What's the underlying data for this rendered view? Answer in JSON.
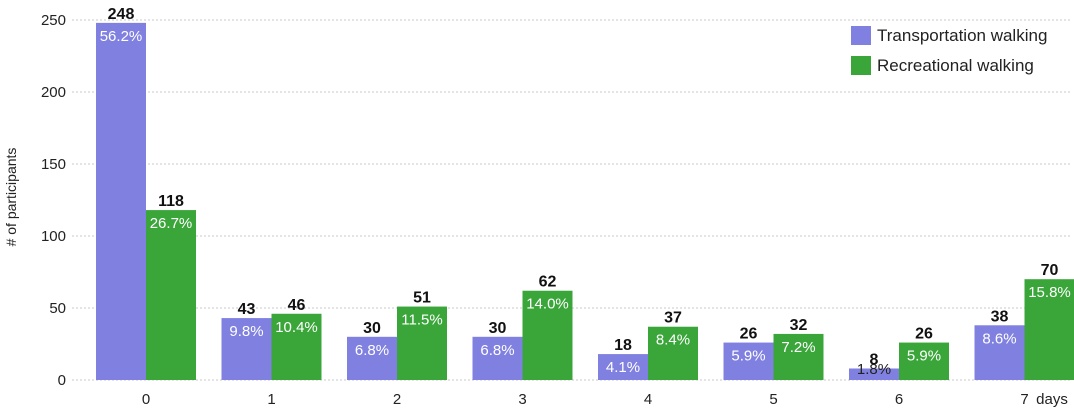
{
  "chart_data": {
    "type": "bar",
    "ylabel": "# of participants",
    "xlabel_suffix": "days",
    "ylim": [
      0,
      250
    ],
    "yticks": [
      0,
      50,
      100,
      150,
      200,
      250
    ],
    "grid": "horizontal dotted",
    "legend_position": "top-right",
    "categories": [
      "0",
      "1",
      "2",
      "3",
      "4",
      "5",
      "6",
      "7"
    ],
    "series": [
      {
        "name": "Transportation walking",
        "color": "#8080e0",
        "values": [
          248,
          43,
          30,
          30,
          18,
          26,
          8,
          38
        ],
        "percent_labels": [
          "56.2%",
          "9.8%",
          "6.8%",
          "6.8%",
          "4.1%",
          "5.9%",
          "1.8%",
          "8.6%"
        ]
      },
      {
        "name": "Recreational walking",
        "color": "#3aa63a",
        "values": [
          118,
          46,
          51,
          62,
          37,
          32,
          26,
          70
        ],
        "percent_labels": [
          "26.7%",
          "10.4%",
          "11.5%",
          "14.0%",
          "8.4%",
          "7.2%",
          "5.9%",
          "15.8%"
        ]
      }
    ]
  }
}
